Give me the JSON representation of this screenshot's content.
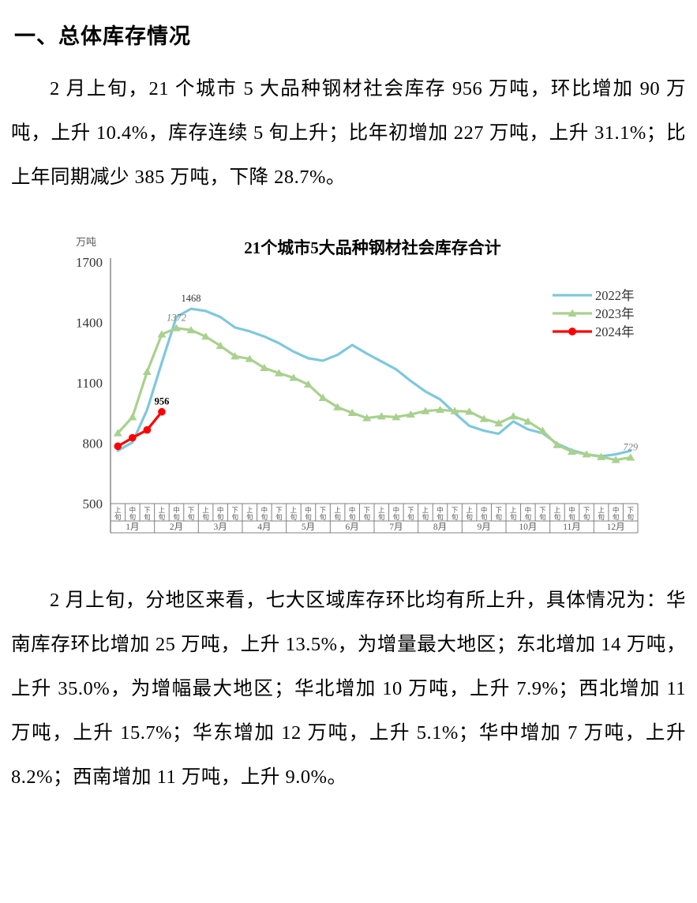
{
  "document": {
    "heading": "一、总体库存情况",
    "paragraph1": "2 月上旬，21 个城市 5 大品种钢材社会库存 956 万吨，环比增加 90 万吨，上升 10.4%，库存连续 5 旬上升；比年初增加 227 万吨，上升 31.1%；比上年同期减少 385 万吨，下降 28.7%。",
    "paragraph2": "2 月上旬，分地区来看，七大区域库存环比均有所上升，具体情况为：华南库存环比增加 25 万吨，上升 13.5%，为增量最大地区；东北增加 14 万吨，上升 35.0%，为增幅最大地区；华北增加 10 万吨，上升 7.9%；西北增加 11 万吨，上升 15.7%；华东增加 12 万吨，上升 5.1%；华中增加 7 万吨，上升 8.2%；西南增加 11 万吨，上升 9.0%。"
  },
  "chart_data": {
    "type": "line",
    "title": "21个城市5大品种钢材社会库存合计",
    "y_axis_label": "万吨",
    "ylim": [
      500,
      1700
    ],
    "y_ticks": [
      1700,
      1400,
      1100,
      800,
      500
    ],
    "grid": false,
    "legend_position": "right",
    "months": [
      "1月",
      "2月",
      "3月",
      "4月",
      "5月",
      "6月",
      "7月",
      "8月",
      "9月",
      "10月",
      "11月",
      "12月"
    ],
    "periods": [
      "上旬",
      "中旬",
      "下旬"
    ],
    "series": [
      {
        "name": "2022年",
        "color": "#7EC8DC",
        "marker": "none",
        "values": [
          763,
          804,
          966,
          1200,
          1427,
          1468,
          1457,
          1427,
          1375,
          1356,
          1330,
          1297,
          1255,
          1222,
          1210,
          1239,
          1288,
          1245,
          1206,
          1167,
          1109,
          1057,
          1018,
          950,
          886,
          862,
          847,
          908,
          869,
          850,
          797,
          765,
          745,
          735,
          745,
          762
        ]
      },
      {
        "name": "2023年",
        "color": "#A9D18E",
        "marker": "triangle",
        "values": [
          850,
          930,
          1155,
          1341,
          1372,
          1362,
          1330,
          1284,
          1232,
          1219,
          1174,
          1148,
          1125,
          1092,
          1025,
          979,
          951,
          925,
          934,
          930,
          943,
          960,
          966,
          960,
          957,
          921,
          899,
          934,
          908,
          862,
          791,
          758,
          745,
          732,
          717,
          729
        ]
      },
      {
        "name": "2024年",
        "color": "#FF0000",
        "marker": "circle",
        "values": [
          785,
          827,
          866,
          956
        ]
      }
    ],
    "point_labels": [
      {
        "series": "2022年",
        "index": 5,
        "text": "1468",
        "color": "#333333",
        "italic": false,
        "bold": false
      },
      {
        "series": "2023年",
        "index": 4,
        "text": "1372",
        "color": "#7f7f7f",
        "italic": true,
        "bold": false
      },
      {
        "series": "2024年",
        "index": 3,
        "text": "956",
        "color": "#000000",
        "italic": false,
        "bold": true
      },
      {
        "series": "2023年",
        "index": 35,
        "text": "729",
        "color": "#7f7f7f",
        "italic": true,
        "bold": false
      }
    ]
  }
}
